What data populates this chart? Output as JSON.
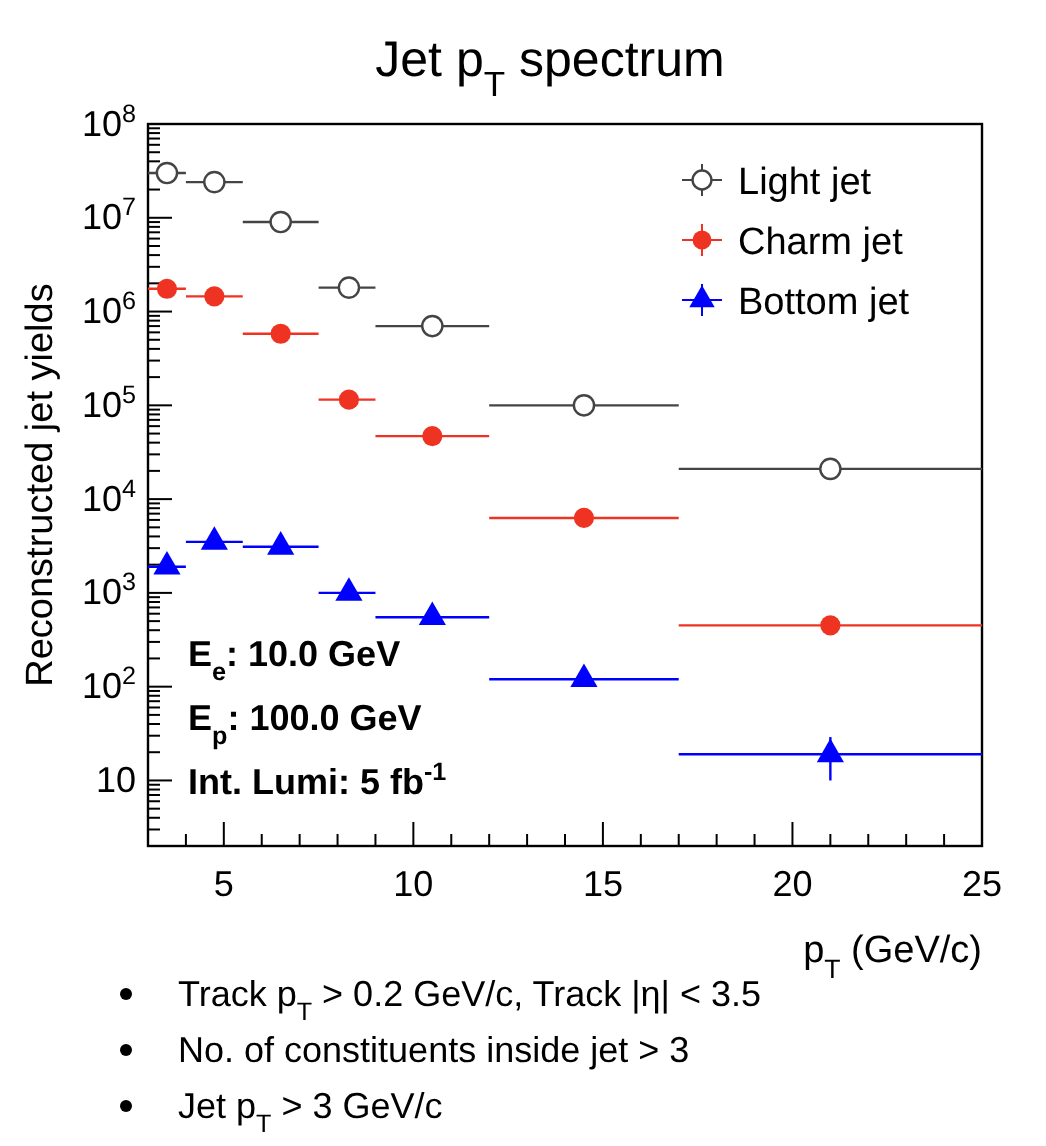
{
  "chart_data": {
    "type": "scatter",
    "title": "Jet p$_{T}$ spectrum",
    "xlabel": "p$_{T}$ (GeV/c)",
    "ylabel": "Reconstructed jet yields",
    "x": [
      3.5,
      4.75,
      6.5,
      8.3,
      10.5,
      14.5,
      21
    ],
    "series": [
      {
        "name": "Light jet",
        "color": "#444444",
        "marker": "circle-open",
        "values": [
          30000000,
          24000000,
          9000000,
          1800000,
          700000,
          100000,
          21000
        ],
        "xerrors": [
          [
            3,
            4
          ],
          [
            4,
            5.5
          ],
          [
            5.5,
            7.5
          ],
          [
            7.5,
            9
          ],
          [
            9,
            12
          ],
          [
            12,
            17
          ],
          [
            17,
            25
          ]
        ]
      },
      {
        "name": "Charm jet",
        "color": "#ee3322",
        "marker": "circle",
        "values": [
          1750000,
          1450000,
          580000,
          115000,
          47000,
          6300,
          450
        ],
        "xerrors": [
          [
            3,
            4
          ],
          [
            4,
            5.5
          ],
          [
            5.5,
            7.5
          ],
          [
            7.5,
            9
          ],
          [
            9,
            12
          ],
          [
            12,
            17
          ],
          [
            17,
            25
          ]
        ]
      },
      {
        "name": "Bottom jet",
        "color": "#0000ff",
        "marker": "triangle",
        "values": [
          1900,
          3500,
          3100,
          1000,
          550,
          120,
          19
        ],
        "xerrors": [
          [
            3,
            4
          ],
          [
            4,
            5.5
          ],
          [
            5.5,
            7.5
          ],
          [
            7.5,
            9
          ],
          [
            9,
            12
          ],
          [
            12,
            17
          ],
          [
            17,
            25
          ]
        ],
        "errors": [
          null,
          null,
          null,
          null,
          null,
          null,
          [
            10,
            29
          ]
        ]
      }
    ],
    "log": true,
    "xlim": [
      3,
      25
    ],
    "xticks": [
      5,
      10,
      15,
      20,
      25
    ],
    "ylim": [
      2,
      100000000
    ],
    "yticks": [
      10,
      {
        "value": 100,
        "label": "10$^{2}$"
      },
      {
        "value": 1000,
        "label": "10$^{3}$"
      },
      {
        "value": 10000,
        "label": "10$^{4}$"
      },
      {
        "value": 100000,
        "label": "10$^{5}$"
      },
      {
        "value": 1000000,
        "label": "10$^{6}$"
      },
      {
        "value": 10000000,
        "label": "10$^{7}$"
      },
      {
        "value": 100000000,
        "label": "10$^{8}$"
      }
    ],
    "legend": "top right",
    "grid": false,
    "annotations": [
      "E$_{e}$: 10.0 GeV",
      "E$_{p}$: 100.0 GeV",
      "Int. Lumi: 5 fb$^{-1}$",
      "Track p$_{T}$ > 0.2 GeV/c, Track |η| < 3.5",
      "No. of constituents inside jet > 3",
      "Jet p$_{T}$ > 3 GeV/c"
    ]
  }
}
